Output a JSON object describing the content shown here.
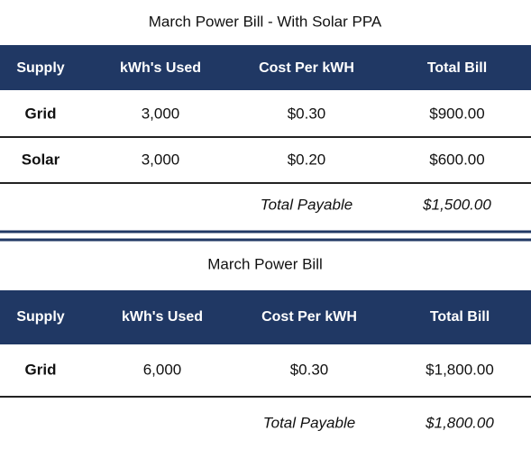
{
  "tables": [
    {
      "title": "March Power Bill - With Solar PPA",
      "header": [
        "Supply",
        "kWh's Used",
        "Cost Per kWH",
        "Total Bill"
      ],
      "rows": [
        [
          "Grid",
          "3,000",
          "$0.30",
          "$900.00"
        ],
        [
          "Solar",
          "3,000",
          "$0.20",
          "$600.00"
        ]
      ],
      "total": {
        "label": "Total Payable",
        "value": "$1,500.00"
      }
    },
    {
      "title": "March Power Bill",
      "header": [
        "Supply",
        "kWh's Used",
        "Cost Per kWH",
        "Total Bill"
      ],
      "rows": [
        [
          "Grid",
          "6,000",
          "$0.30",
          "$1,800.00"
        ]
      ],
      "total": {
        "label": "Total Payable",
        "value": "$1,800.00"
      }
    }
  ]
}
